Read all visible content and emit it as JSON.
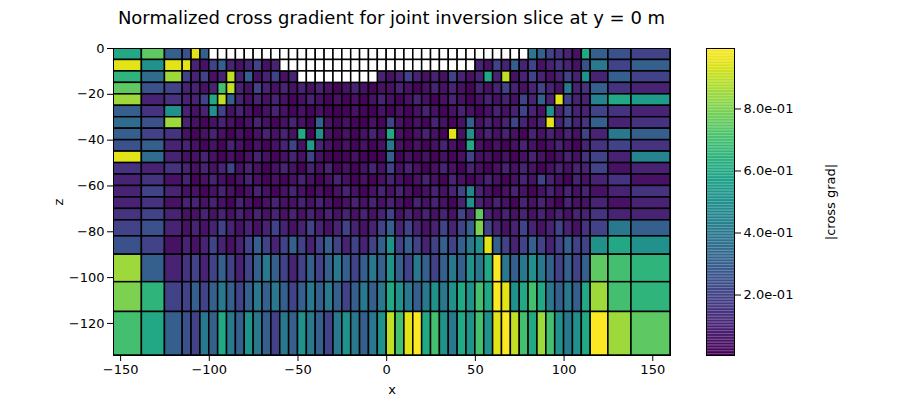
{
  "chart_data": {
    "type": "heatmap",
    "title": "Normalized cross gradient for joint inversion slice at y = 0 m",
    "x_label": "x",
    "y_label": "z",
    "xlim": [
      -154,
      160
    ],
    "ylim": [
      -134,
      0
    ],
    "xticks": [
      -150,
      -100,
      -50,
      0,
      50,
      100,
      150
    ],
    "yticks": [
      -120,
      -100,
      -80,
      -60,
      -40,
      -20,
      0
    ],
    "color": "viridis",
    "x_edges": [
      -154,
      -138,
      -125,
      -115,
      -110,
      -105,
      -100,
      -95,
      -90,
      -85,
      -80,
      -75,
      -70,
      -65,
      -60,
      -55,
      -50,
      -45,
      -40,
      -35,
      -30,
      -25,
      -20,
      -15,
      -10,
      -5,
      0,
      5,
      10,
      15,
      20,
      25,
      30,
      35,
      40,
      45,
      50,
      55,
      60,
      65,
      70,
      75,
      80,
      85,
      90,
      95,
      100,
      105,
      110,
      115,
      125,
      138,
      160
    ],
    "z_edges": [
      0,
      -5,
      -10,
      -15,
      -20,
      -25,
      -30,
      -35,
      -40,
      -45,
      -50,
      -55,
      -60,
      -65,
      -70,
      -75,
      -82,
      -90,
      -102,
      -115,
      -134
    ],
    "cells": [
      [
        0.6,
        0.75,
        0.3,
        0.25,
        0.95,
        0.3,
        null,
        null,
        null,
        null,
        null,
        null,
        null,
        null,
        null,
        null,
        null,
        null,
        null,
        null,
        null,
        null,
        null,
        null,
        null,
        null,
        null,
        null,
        null,
        null,
        null,
        null,
        null,
        null,
        null,
        null,
        null,
        null,
        null,
        null,
        null,
        null,
        0.4,
        0.3,
        0.2,
        0.15,
        0.1,
        0.05,
        0.6,
        0.3,
        0.25,
        0.2
      ],
      [
        0.95,
        0.5,
        0.95,
        0.95,
        0.1,
        0.05,
        0.2,
        0.3,
        0.1,
        0.05,
        0.1,
        0.2,
        0.05,
        0.1,
        null,
        null,
        null,
        null,
        null,
        null,
        null,
        null,
        null,
        null,
        null,
        null,
        null,
        null,
        null,
        null,
        null,
        null,
        null,
        null,
        null,
        null,
        0.1,
        0.05,
        0.2,
        0.1,
        0.3,
        0.1,
        0.2,
        0.05,
        0.1,
        0.15,
        0.1,
        0.05,
        0.25,
        0.4,
        0.2,
        0.3
      ],
      [
        0.65,
        0.35,
        0.85,
        0.2,
        0.1,
        0.2,
        0.05,
        0.1,
        0.9,
        0.1,
        0.3,
        0.05,
        0.1,
        0.2,
        0.05,
        0.1,
        null,
        null,
        null,
        null,
        null,
        null,
        null,
        null,
        null,
        0.1,
        0.05,
        0.1,
        0.2,
        0.1,
        0.05,
        0.1,
        0.05,
        0.2,
        0.1,
        0.05,
        0.1,
        0.6,
        0.1,
        0.9,
        0.05,
        0.1,
        0.2,
        0.1,
        0.05,
        0.1,
        0.2,
        0.1,
        0.5,
        0.1,
        0.3,
        0.2
      ],
      [
        0.75,
        0.25,
        0.2,
        0.1,
        0.1,
        0.05,
        0.1,
        0.7,
        0.9,
        0.1,
        0.05,
        0.2,
        0.1,
        0.05,
        0.1,
        0.05,
        0.1,
        0.05,
        0.1,
        0.05,
        0.02,
        0.05,
        0.1,
        0.05,
        0.02,
        0.05,
        0.05,
        0.1,
        0.05,
        0.02,
        0.05,
        0.1,
        0.05,
        0.1,
        0.05,
        0.02,
        0.1,
        0.05,
        0.1,
        0.2,
        0.1,
        0.05,
        0.1,
        0.2,
        0.1,
        0.05,
        0.4,
        0.1,
        0.15,
        0.3,
        0.15,
        0.1
      ],
      [
        0.85,
        0.1,
        0.15,
        0.1,
        0.1,
        0.2,
        0.6,
        0.9,
        0.3,
        0.1,
        0.05,
        0.1,
        0.05,
        0.1,
        0.05,
        0.02,
        0.05,
        0.1,
        0.05,
        0.02,
        0.05,
        0.02,
        0.05,
        0.02,
        0.05,
        0.1,
        0.05,
        0.02,
        0.05,
        0.1,
        0.05,
        0.02,
        0.05,
        0.1,
        0.05,
        0.02,
        0.05,
        0.1,
        0.05,
        0.1,
        0.05,
        0.2,
        0.1,
        0.3,
        0.1,
        0.95,
        0.2,
        0.1,
        0.1,
        0.45,
        0.6,
        0.55
      ],
      [
        0.3,
        0.15,
        0.5,
        0.1,
        0.05,
        0.1,
        0.5,
        0.2,
        0.05,
        0.1,
        0.05,
        0.02,
        0.05,
        0.1,
        0.05,
        0.02,
        0.05,
        0.02,
        0.05,
        0.02,
        0.01,
        0.02,
        0.05,
        0.02,
        0.01,
        0.05,
        0.02,
        0.05,
        0.02,
        0.05,
        0.1,
        0.05,
        0.02,
        0.05,
        0.1,
        0.05,
        0.02,
        0.05,
        0.1,
        0.05,
        0.1,
        0.2,
        0.1,
        0.05,
        0.5,
        0.1,
        0.2,
        0.1,
        0.1,
        0.2,
        0.15,
        0.1
      ],
      [
        0.35,
        0.25,
        0.85,
        0.1,
        0.05,
        0.02,
        0.05,
        0.1,
        0.05,
        0.02,
        0.05,
        0.1,
        0.05,
        0.02,
        0.05,
        0.1,
        0.05,
        0.02,
        0.3,
        0.05,
        0.02,
        0.05,
        0.02,
        0.01,
        0.05,
        0.02,
        0.2,
        0.05,
        0.02,
        0.05,
        0.02,
        0.1,
        0.05,
        0.02,
        0.05,
        0.3,
        0.05,
        0.1,
        0.05,
        0.1,
        0.2,
        0.1,
        0.05,
        0.1,
        0.95,
        0.1,
        0.2,
        0.1,
        0.15,
        0.3,
        0.1,
        0.15
      ],
      [
        0.3,
        0.2,
        0.15,
        0.05,
        0.02,
        0.05,
        0.1,
        0.05,
        0.02,
        0.05,
        0.02,
        0.05,
        0.1,
        0.05,
        0.1,
        0.05,
        0.6,
        0.02,
        0.5,
        0.05,
        0.02,
        0.05,
        0.02,
        0.05,
        0.1,
        0.05,
        0.6,
        0.05,
        0.02,
        0.05,
        0.1,
        0.05,
        0.02,
        0.95,
        0.05,
        0.5,
        0.05,
        0.1,
        0.05,
        0.1,
        0.05,
        0.02,
        0.1,
        0.05,
        0.1,
        0.05,
        0.1,
        0.05,
        0.2,
        0.1,
        0.4,
        0.3
      ],
      [
        0.25,
        0.3,
        0.1,
        0.1,
        0.05,
        0.02,
        0.05,
        0.02,
        0.1,
        0.05,
        0.02,
        0.05,
        0.02,
        0.05,
        0.1,
        0.2,
        0.05,
        0.55,
        0.1,
        0.05,
        0.02,
        0.05,
        0.02,
        0.05,
        0.02,
        0.05,
        0.4,
        0.05,
        0.02,
        0.05,
        0.02,
        0.05,
        0.1,
        0.05,
        0.02,
        0.6,
        0.05,
        0.02,
        0.05,
        0.02,
        0.05,
        0.1,
        0.05,
        0.02,
        0.05,
        0.1,
        0.05,
        0.02,
        0.1,
        0.15,
        0.2,
        0.15
      ],
      [
        0.95,
        0.35,
        0.1,
        0.05,
        0.05,
        0.1,
        0.05,
        0.02,
        0.05,
        0.02,
        0.05,
        0.1,
        0.05,
        0.02,
        0.05,
        0.1,
        0.05,
        0.2,
        0.05,
        0.02,
        0.01,
        0.02,
        0.05,
        0.02,
        0.01,
        0.02,
        0.3,
        0.02,
        0.05,
        0.02,
        0.05,
        0.02,
        0.05,
        0.02,
        0.05,
        0.2,
        0.05,
        0.05,
        0.02,
        0.05,
        0.02,
        0.05,
        0.1,
        0.05,
        0.02,
        0.05,
        0.1,
        0.05,
        0.15,
        0.2,
        0.1,
        0.45
      ],
      [
        0.15,
        0.1,
        0.15,
        0.1,
        0.05,
        0.1,
        0.05,
        0.1,
        0.2,
        0.05,
        0.1,
        0.05,
        0.02,
        0.05,
        0.1,
        0.05,
        0.02,
        0.1,
        0.05,
        0.1,
        0.02,
        0.05,
        0.02,
        0.05,
        0.1,
        0.05,
        0.2,
        0.05,
        0.1,
        0.05,
        0.02,
        0.05,
        0.1,
        0.05,
        0.02,
        0.1,
        0.05,
        0.02,
        0.05,
        0.1,
        0.05,
        0.1,
        0.05,
        0.02,
        0.05,
        0.1,
        0.05,
        0.1,
        0.1,
        0.2,
        0.05,
        0.1
      ],
      [
        0.1,
        0.15,
        0.05,
        0.1,
        0.02,
        0.05,
        0.1,
        0.05,
        0.02,
        0.05,
        0.1,
        0.05,
        0.02,
        0.05,
        0.02,
        0.05,
        0.1,
        0.05,
        0.02,
        0.05,
        0.1,
        0.05,
        0.02,
        0.05,
        0.02,
        0.05,
        0.1,
        0.05,
        0.02,
        0.05,
        0.1,
        0.05,
        0.02,
        0.1,
        0.05,
        0.02,
        0.05,
        0.1,
        0.05,
        0.02,
        0.05,
        0.1,
        0.05,
        0.2,
        0.1,
        0.05,
        0.02,
        0.1,
        0.05,
        0.1,
        0.15,
        0.05
      ],
      [
        0.1,
        0.2,
        0.1,
        0.05,
        0.05,
        0.02,
        0.05,
        0.1,
        0.05,
        0.02,
        0.05,
        0.1,
        0.05,
        0.02,
        0.05,
        0.1,
        0.05,
        0.02,
        0.05,
        0.02,
        0.05,
        0.1,
        0.05,
        0.02,
        0.05,
        0.1,
        0.05,
        0.1,
        0.05,
        0.02,
        0.05,
        0.1,
        0.05,
        0.1,
        0.2,
        0.45,
        0.1,
        0.05,
        0.02,
        0.05,
        0.1,
        0.05,
        0.02,
        0.05,
        0.1,
        0.05,
        0.1,
        0.05,
        0.1,
        0.05,
        0.1,
        0.15
      ],
      [
        0.1,
        0.15,
        0.05,
        0.1,
        0.1,
        0.05,
        0.1,
        0.05,
        0.02,
        0.1,
        0.05,
        0.02,
        0.05,
        0.1,
        0.05,
        0.05,
        0.1,
        0.05,
        0.1,
        0.05,
        0.02,
        0.05,
        0.1,
        0.05,
        0.1,
        0.05,
        0.1,
        0.05,
        0.02,
        0.1,
        0.05,
        0.1,
        0.05,
        0.02,
        0.1,
        0.5,
        0.1,
        0.05,
        0.1,
        0.05,
        0.02,
        0.1,
        0.05,
        0.1,
        0.05,
        0.02,
        0.1,
        0.05,
        0.05,
        0.1,
        0.05,
        0.1
      ],
      [
        0.15,
        0.2,
        0.1,
        0.05,
        0.05,
        0.1,
        0.05,
        0.1,
        0.05,
        0.1,
        0.05,
        0.1,
        0.05,
        0.1,
        0.05,
        0.1,
        0.05,
        0.1,
        0.05,
        0.1,
        0.05,
        0.1,
        0.05,
        0.1,
        0.05,
        0.1,
        0.2,
        0.05,
        0.1,
        0.05,
        0.1,
        0.05,
        0.1,
        0.05,
        0.2,
        0.1,
        0.75,
        0.1,
        0.05,
        0.1,
        0.05,
        0.1,
        0.05,
        0.1,
        0.05,
        0.1,
        0.05,
        0.1,
        0.1,
        0.15,
        0.1,
        0.1
      ],
      [
        0.2,
        0.25,
        0.1,
        0.05,
        0.1,
        0.05,
        0.1,
        0.2,
        0.1,
        0.05,
        0.1,
        0.05,
        0.1,
        0.2,
        0.1,
        0.05,
        0.1,
        0.2,
        0.1,
        0.05,
        0.1,
        0.2,
        0.1,
        0.05,
        0.1,
        0.2,
        0.3,
        0.1,
        0.2,
        0.1,
        0.05,
        0.1,
        0.2,
        0.1,
        0.2,
        0.3,
        0.8,
        0.2,
        0.1,
        0.05,
        0.1,
        0.2,
        0.1,
        0.05,
        0.1,
        0.2,
        0.1,
        0.05,
        0.15,
        0.2,
        0.4,
        0.3
      ],
      [
        0.25,
        0.2,
        0.05,
        0.1,
        0.05,
        0.1,
        0.2,
        0.1,
        0.05,
        0.1,
        0.2,
        0.3,
        0.2,
        0.1,
        0.2,
        0.3,
        0.2,
        0.1,
        0.2,
        0.3,
        0.2,
        0.1,
        0.2,
        0.1,
        0.2,
        0.3,
        0.5,
        0.2,
        0.3,
        0.2,
        0.1,
        0.2,
        0.3,
        0.2,
        0.3,
        0.4,
        0.5,
        0.95,
        0.3,
        0.2,
        0.1,
        0.2,
        0.3,
        0.2,
        0.1,
        0.2,
        0.3,
        0.2,
        0.2,
        0.5,
        0.6,
        0.5
      ],
      [
        0.85,
        0.3,
        0.1,
        0.15,
        0.2,
        0.1,
        0.2,
        0.3,
        0.2,
        0.1,
        0.2,
        0.3,
        0.4,
        0.3,
        0.2,
        0.1,
        0.2,
        0.3,
        0.2,
        0.3,
        0.4,
        0.3,
        0.2,
        0.3,
        0.4,
        0.3,
        0.5,
        0.3,
        0.2,
        0.4,
        0.3,
        0.2,
        0.3,
        0.4,
        0.3,
        0.5,
        0.4,
        0.6,
        0.99,
        0.4,
        0.3,
        0.4,
        0.5,
        0.4,
        0.3,
        0.2,
        0.3,
        0.2,
        0.3,
        0.75,
        0.7,
        0.65
      ],
      [
        0.8,
        0.65,
        0.2,
        0.2,
        0.3,
        0.2,
        0.3,
        0.4,
        0.3,
        0.2,
        0.3,
        0.4,
        0.3,
        0.4,
        0.3,
        0.2,
        0.3,
        0.4,
        0.3,
        0.4,
        0.3,
        0.2,
        0.3,
        0.4,
        0.3,
        0.4,
        0.6,
        0.5,
        0.4,
        0.3,
        0.4,
        0.5,
        0.4,
        0.5,
        0.6,
        0.5,
        0.7,
        0.6,
        0.99,
        0.95,
        0.5,
        0.6,
        0.7,
        0.6,
        0.4,
        0.3,
        0.4,
        0.3,
        0.6,
        0.85,
        0.7,
        0.65
      ],
      [
        0.7,
        0.6,
        0.3,
        0.25,
        0.2,
        0.4,
        0.3,
        0.6,
        0.4,
        0.3,
        0.5,
        0.4,
        0.3,
        0.2,
        0.4,
        0.3,
        0.5,
        0.4,
        0.3,
        0.2,
        0.4,
        0.5,
        0.4,
        0.3,
        0.4,
        0.5,
        0.9,
        0.7,
        0.95,
        0.99,
        0.6,
        0.7,
        0.5,
        0.4,
        0.6,
        0.5,
        0.7,
        0.5,
        0.95,
        0.99,
        0.9,
        0.7,
        0.6,
        0.85,
        0.7,
        0.5,
        0.4,
        0.5,
        0.6,
        0.99,
        0.85,
        0.75
      ]
    ],
    "colorbar": {
      "label": "|cross grad|",
      "range": [
        0.005,
        0.995
      ],
      "ticks": [
        {
          "value": 0.2,
          "label": "2.0e-01"
        },
        {
          "value": 0.4,
          "label": "4.0e-01"
        },
        {
          "value": 0.6,
          "label": "6.0e-01"
        },
        {
          "value": 0.8,
          "label": "8.0e-01"
        }
      ]
    }
  }
}
